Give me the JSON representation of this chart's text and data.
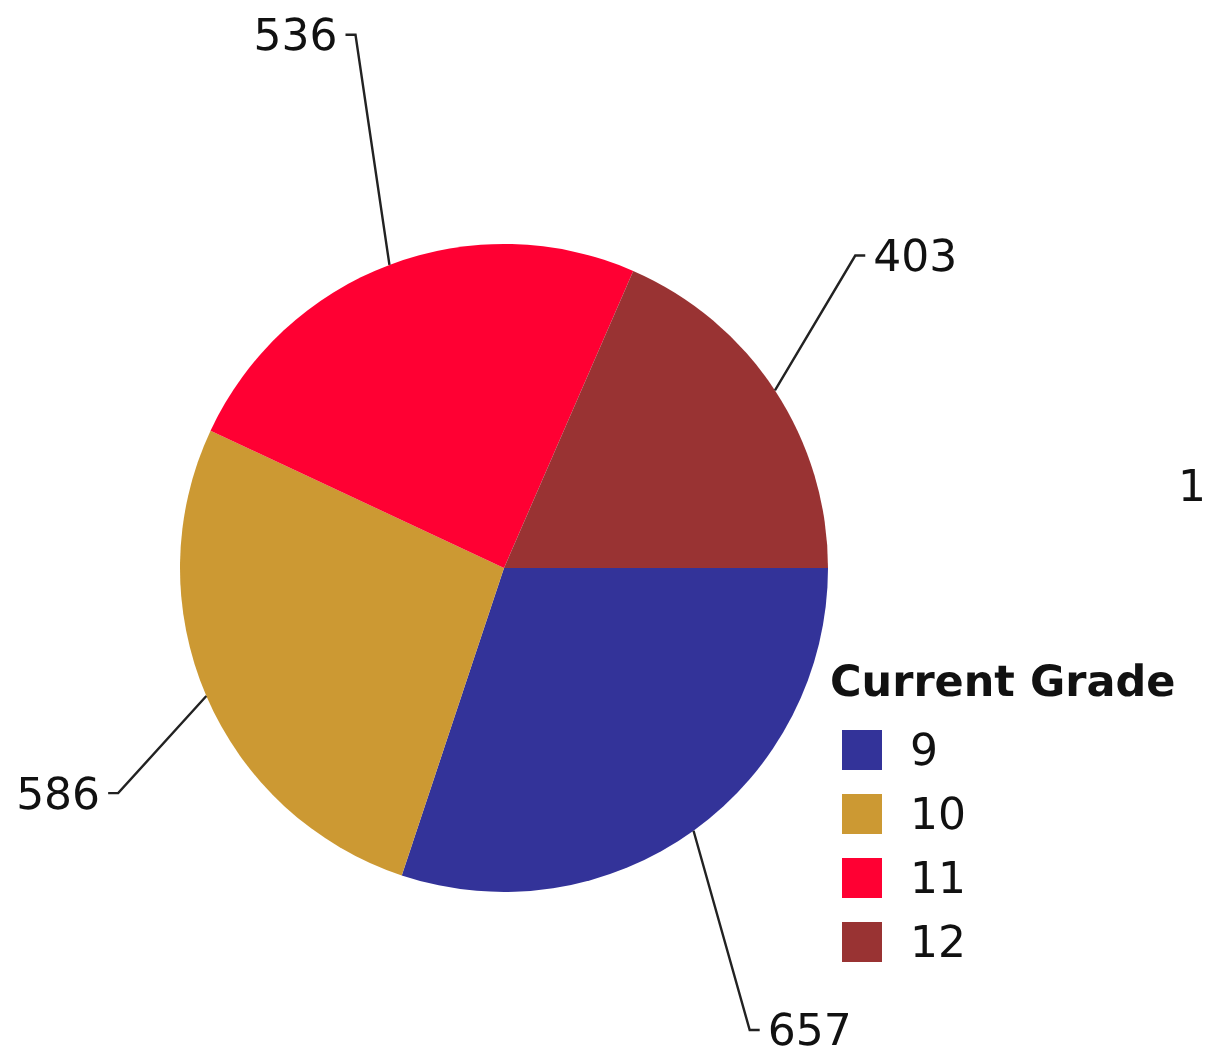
{
  "chart_data": {
    "type": "pie",
    "categories": [
      "9",
      "10",
      "11",
      "12"
    ],
    "values": [
      657,
      586,
      536,
      403
    ],
    "colors": [
      "#333399",
      "#cc9933",
      "#ff0033",
      "#993333"
    ],
    "legend_title": "Current Grade",
    "legend": "bottom right",
    "data_labels": true,
    "annotations": [
      "1"
    ]
  }
}
